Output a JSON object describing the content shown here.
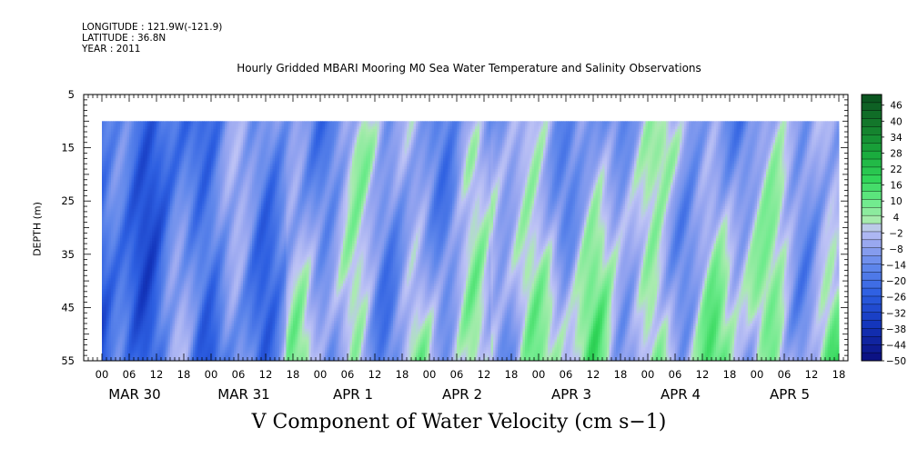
{
  "header": {
    "longitude": "LONGITUDE : 121.9W(-121.9)",
    "latitude": "LATITUDE : 36.8N",
    "year": "YEAR : 2011"
  },
  "chart_data": {
    "type": "heatmap",
    "title": "Hourly Gridded MBARI Mooring M0 Sea Water Temperature and Salinity Observations",
    "xlabel": "V Component of Water Velocity (cm s−1)",
    "ylabel": "DEPTH (m)",
    "x_hour_ticks": [
      "00",
      "06",
      "12",
      "18",
      "00",
      "06",
      "12",
      "18",
      "00",
      "06",
      "12",
      "18",
      "00",
      "06",
      "12",
      "18",
      "00",
      "06",
      "12",
      "18",
      "00",
      "06",
      "12",
      "18",
      "00",
      "06",
      "12",
      "18"
    ],
    "x_date_labels": [
      "MAR 30",
      "MAR 31",
      "APR  1",
      "APR  2",
      "APR  3",
      "APR  4",
      "APR  5"
    ],
    "xlim_hours": [
      -4,
      164
    ],
    "data_start_hour": 0,
    "data_end_hour": 162,
    "y_ticks": [
      "5",
      "15",
      "25",
      "35",
      "45",
      "55"
    ],
    "ylim": [
      55,
      5
    ],
    "data_depth_range": [
      10,
      55
    ],
    "colorbar": {
      "labels": [
        "46",
        "40",
        "34",
        "28",
        "22",
        "16",
        "10",
        "4",
        "−2",
        "−8",
        "−14",
        "−20",
        "−26",
        "−32",
        "−38",
        "−44",
        "−50"
      ],
      "min": -50,
      "max": 50,
      "step": 3
    },
    "data_description": "Hourly V velocity field; mostly −8 to −26 cm/s (blue) on Mar 30–31 and upper layers, with positive 4–16 cm/s (green) bands at depth from Apr 1 onward."
  }
}
